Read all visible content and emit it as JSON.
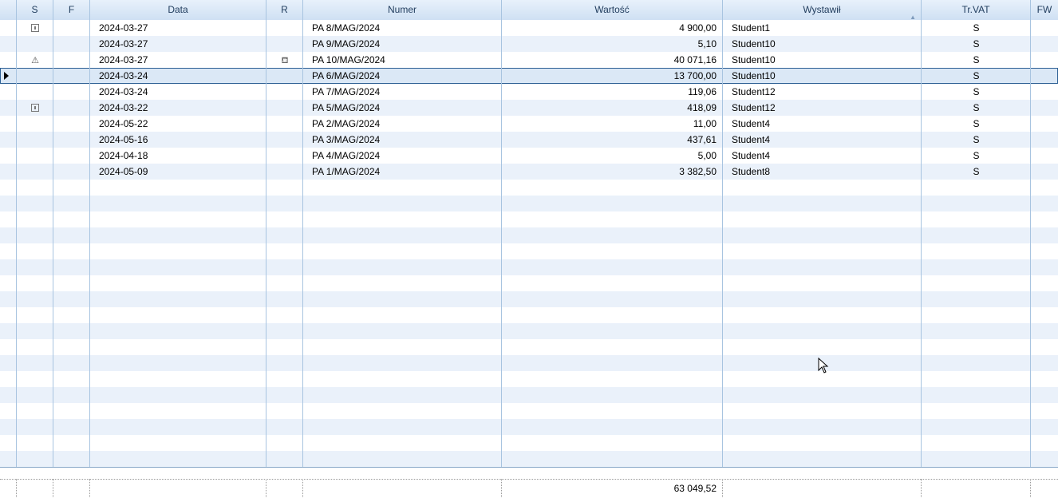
{
  "columns": {
    "s": "S",
    "f": "F",
    "data": "Data",
    "r": "R",
    "numer": "Numer",
    "wartosc": "Wartość",
    "wystawil": "Wystawił",
    "trvat": "Tr.VAT",
    "fw": "FW"
  },
  "rows": [
    {
      "s_icon": "document-lock-icon",
      "data": "2024-03-27",
      "r_icon": "",
      "numer": "PA 8/MAG/2024",
      "wartosc": "4 900,00",
      "wystawil": "Student1",
      "trvat": "S"
    },
    {
      "s_icon": "",
      "data": "2024-03-27",
      "r_icon": "",
      "numer": "PA 9/MAG/2024",
      "wartosc": "5,10",
      "wystawil": "Student10",
      "trvat": "S"
    },
    {
      "s_icon": "warning-icon",
      "data": "2024-03-27",
      "r_icon": "stamp-icon",
      "numer": "PA 10/MAG/2024",
      "wartosc": "40 071,16",
      "wystawil": "Student10",
      "trvat": "S"
    },
    {
      "s_icon": "",
      "data": "2024-03-24",
      "r_icon": "",
      "numer": "PA 6/MAG/2024",
      "wartosc": "13 700,00",
      "wystawil": "Student10",
      "trvat": "S",
      "selected": true
    },
    {
      "s_icon": "",
      "data": "2024-03-24",
      "r_icon": "",
      "numer": "PA 7/MAG/2024",
      "wartosc": "119,06",
      "wystawil": "Student12",
      "trvat": "S"
    },
    {
      "s_icon": "document-lock-icon",
      "data": "2024-03-22",
      "r_icon": "",
      "numer": "PA 5/MAG/2024",
      "wartosc": "418,09",
      "wystawil": "Student12",
      "trvat": "S"
    },
    {
      "s_icon": "",
      "data": "2024-05-22",
      "r_icon": "",
      "numer": "PA 2/MAG/2024",
      "wartosc": "11,00",
      "wystawil": "Student4",
      "trvat": "S"
    },
    {
      "s_icon": "",
      "data": "2024-05-16",
      "r_icon": "",
      "numer": "PA 3/MAG/2024",
      "wartosc": "437,61",
      "wystawil": "Student4",
      "trvat": "S"
    },
    {
      "s_icon": "",
      "data": "2024-04-18",
      "r_icon": "",
      "numer": "PA 4/MAG/2024",
      "wartosc": "5,00",
      "wystawil": "Student4",
      "trvat": "S"
    },
    {
      "s_icon": "",
      "data": "2024-05-09",
      "r_icon": "",
      "numer": "PA 1/MAG/2024",
      "wartosc": "3 382,50",
      "wystawil": "Student8",
      "trvat": "S"
    }
  ],
  "footer": {
    "wartosc_total": "63 049,52"
  },
  "colors": {
    "header_text": "#1f3b5c",
    "grid_line": "#a8c4e0",
    "alt_row": "#eaf1fa",
    "selection": "#dbe8f6"
  }
}
